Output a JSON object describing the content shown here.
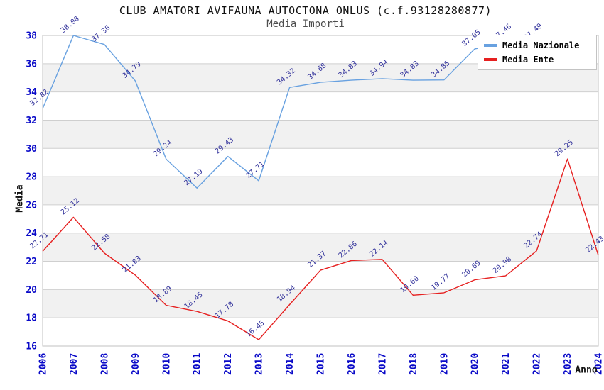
{
  "header": {
    "title": "CLUB AMATORI AVIFAUNA AUTOCTONA ONLUS (c.f.93128280877)",
    "subtitle": "Media Importi"
  },
  "chart_data": {
    "type": "line",
    "title": "CLUB AMATORI AVIFAUNA AUTOCTONA ONLUS (c.f.93128280877)",
    "subtitle": "Media Importi",
    "xlabel": "Anno",
    "ylabel": "Media",
    "x": [
      2006,
      2007,
      2008,
      2009,
      2010,
      2011,
      2012,
      2013,
      2014,
      2015,
      2016,
      2017,
      2018,
      2019,
      2020,
      2021,
      2022,
      2023,
      2024
    ],
    "series": [
      {
        "name": "Media Nazionale",
        "color": "#68a1e0",
        "values": [
          32.82,
          38.0,
          37.36,
          34.79,
          29.24,
          27.19,
          29.43,
          27.71,
          34.32,
          34.68,
          34.83,
          34.94,
          34.83,
          34.85,
          37.05,
          37.46,
          37.49,
          null,
          null
        ]
      },
      {
        "name": "Media Ente",
        "color": "#e62020",
        "values": [
          22.71,
          25.12,
          22.58,
          21.03,
          18.89,
          18.45,
          17.78,
          16.45,
          18.94,
          21.37,
          22.06,
          22.14,
          19.6,
          19.77,
          20.69,
          20.98,
          22.74,
          29.25,
          22.43
        ]
      }
    ],
    "ylim": [
      16,
      38
    ],
    "ytick_step": 2,
    "grid": true,
    "alternating_bands": true,
    "legend_position": "top-right",
    "colors": {
      "tick_label": "#0a0ac8",
      "point_label": "#32329b",
      "grid_line": "#cfcfcf",
      "plot_border": "#c0c0c0",
      "band_fill": "#f1f1f1",
      "plot_bg": "#ffffff"
    }
  }
}
